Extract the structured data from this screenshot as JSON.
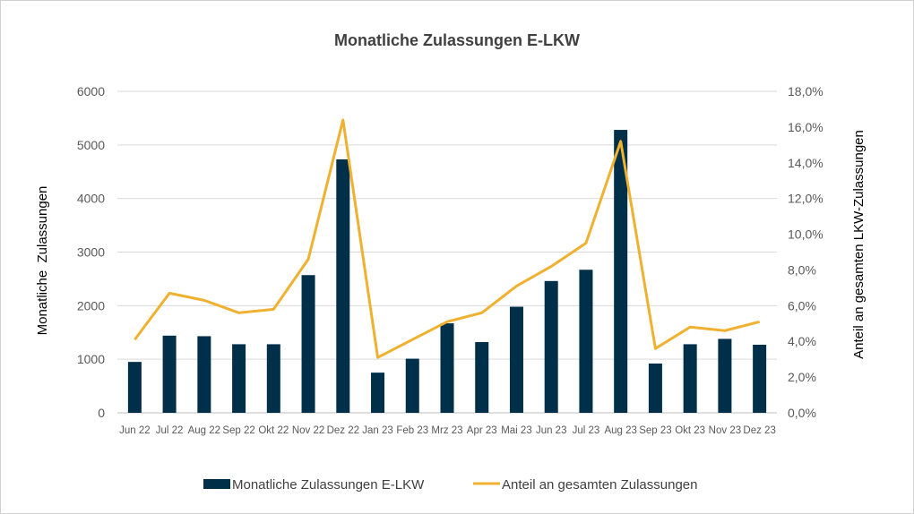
{
  "chart_data": {
    "type": "bar",
    "title": "Monatliche Zulassungen E-LKW",
    "categories": [
      "Jun 22",
      "Jul 22",
      "Aug 22",
      "Sep 22",
      "Okt 22",
      "Nov 22",
      "Dez 22",
      "Jan 23",
      "Feb 23",
      "Mrz 23",
      "Apr 23",
      "Mai 23",
      "Jun 23",
      "Jul 23",
      "Aug 23",
      "Sep 23",
      "Okt 23",
      "Nov 23",
      "Dez 23"
    ],
    "ylabel": "Monatliche  Zulassungen",
    "y2label": "Anteil an gesamten LKW-Zulassungen",
    "ylim": [
      0,
      6000
    ],
    "y2lim": [
      0,
      18
    ],
    "yticks": [
      "0",
      "1000",
      "2000",
      "3000",
      "4000",
      "5000",
      "6000"
    ],
    "y2ticks": [
      "0,0%",
      "2,0%",
      "4,0%",
      "6,0%",
      "8,0%",
      "10,0%",
      "12,0%",
      "14,0%",
      "16,0%",
      "18,0%"
    ],
    "grid": true,
    "legend_position": "bottom",
    "series": [
      {
        "name": "Monatliche Zulassungen E-LKW",
        "type": "bar",
        "axis": "left",
        "color": "#003049",
        "values": [
          950,
          1440,
          1430,
          1280,
          1280,
          2570,
          4730,
          750,
          1010,
          1670,
          1320,
          1980,
          2460,
          2670,
          5280,
          920,
          1280,
          1380,
          1270
        ]
      },
      {
        "name": "Anteil an gesamten Zulassungen",
        "type": "line",
        "axis": "right",
        "color": "#f0b030",
        "values": [
          4.1,
          6.7,
          6.3,
          5.6,
          5.8,
          8.6,
          16.4,
          3.1,
          4.1,
          5.1,
          5.6,
          7.1,
          8.2,
          9.5,
          15.2,
          3.6,
          4.8,
          4.6,
          5.1
        ]
      }
    ]
  }
}
